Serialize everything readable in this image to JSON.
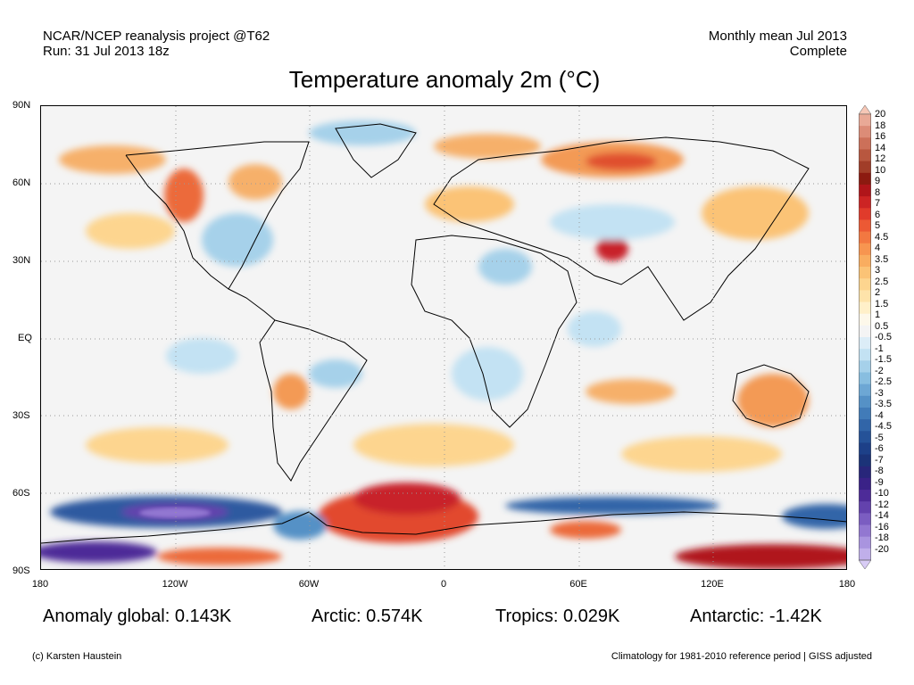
{
  "header": {
    "left_line1": "NCAR/NCEP reanalysis project @T62",
    "left_line2": "Run: 31 Jul 2013 18z",
    "right_line1": "Monthly mean Jul 2013",
    "right_line2": "Complete"
  },
  "title": "Temperature anomaly 2m (°C)",
  "map": {
    "lat_labels": [
      "90N",
      "60N",
      "30N",
      "EQ",
      "30S",
      "60S",
      "90S"
    ],
    "lon_labels": [
      "180",
      "120W",
      "60W",
      "0",
      "60E",
      "120E",
      "180"
    ],
    "grid_style": "dotted"
  },
  "colorbar": {
    "labels": [
      "20",
      "18",
      "16",
      "14",
      "12",
      "10",
      "9",
      "8",
      "7",
      "6",
      "5",
      "4.5",
      "4",
      "3.5",
      "3",
      "2.5",
      "2",
      "1.5",
      "1",
      "0.5",
      "-0.5",
      "-1",
      "-1.5",
      "-2",
      "-2.5",
      "-3",
      "-3.5",
      "-4",
      "-4.5",
      "-5",
      "-6",
      "-7",
      "-8",
      "-9",
      "-10",
      "-12",
      "-14",
      "-16",
      "-18",
      "-20"
    ],
    "colors": [
      "#f6c7b6",
      "#e9a996",
      "#dc8c77",
      "#cc7059",
      "#b8573f",
      "#a13d28",
      "#8c1a10",
      "#b0151a",
      "#cc2424",
      "#e03b2b",
      "#ec5934",
      "#f27841",
      "#f79550",
      "#f9ad60",
      "#fbc376",
      "#fdd58f",
      "#fee3aa",
      "#fff0c9",
      "#fdf8ea",
      "#f4f4f4",
      "#dcedf7",
      "#c3e2f3",
      "#a6d1ea",
      "#88bee0",
      "#6da7d4",
      "#5591c6",
      "#417bb8",
      "#3165a8",
      "#255298",
      "#1d4088",
      "#1b3378",
      "#28267a",
      "#3a2287",
      "#4d2b98",
      "#6342ad",
      "#7b5dc1",
      "#9277d1",
      "#a994df",
      "#c0afea",
      "#d8ccf5"
    ]
  },
  "stats": {
    "global": "Anomaly global: 0.143K",
    "arctic": "Arctic: 0.574K",
    "tropics": "Tropics: 0.029K",
    "antarctic": "Antarctic: -1.42K"
  },
  "footer": {
    "left": "(c) Karsten Haustein",
    "right": "Climatology for 1981-2010 reference period | GISS adjusted"
  }
}
